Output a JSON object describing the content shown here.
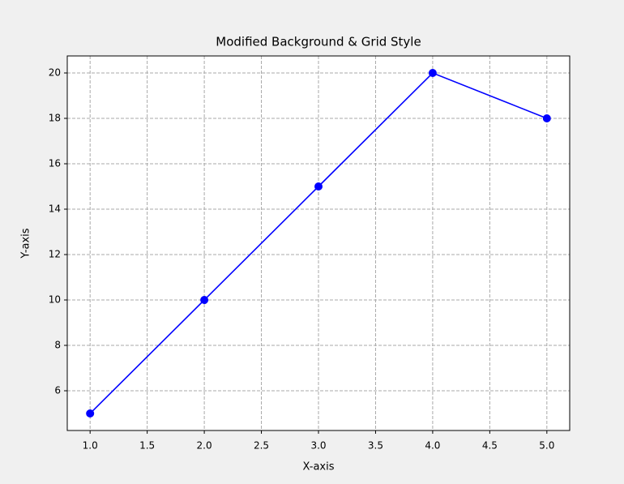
{
  "chart_data": {
    "type": "line",
    "title": "Modified Background & Grid Style",
    "xlabel": "X-axis",
    "ylabel": "Y-axis",
    "x": [
      1,
      2,
      3,
      4,
      5
    ],
    "series": [
      {
        "color": "#0000ff",
        "values": [
          5,
          10,
          15,
          20,
          18
        ]
      }
    ],
    "xlim": [
      0.8,
      5.2
    ],
    "xticks": [
      {
        "value": 1,
        "label": "1.0"
      },
      1.5,
      {
        "value": 2,
        "label": "2.0"
      },
      2.5,
      {
        "value": 3,
        "label": "3.0"
      },
      3.5,
      {
        "value": 4,
        "label": "4.0"
      },
      4.5,
      {
        "value": 5,
        "label": "5.0"
      }
    ],
    "ylim": [
      4.25,
      20.75
    ],
    "yticks": [
      6,
      8,
      10,
      12,
      14,
      16,
      18,
      20
    ],
    "grid": true,
    "background": "#f0f0f0",
    "plot_background": "#ffffff"
  }
}
